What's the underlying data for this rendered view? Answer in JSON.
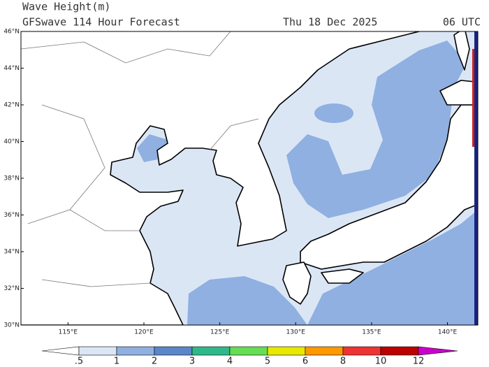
{
  "header": {
    "title": "Wave Height(m)",
    "subtitle": "GFSwave 114 Hour Forecast",
    "date": "Thu 18 Dec 2025",
    "time": "06 UTC"
  },
  "map": {
    "xlim": [
      111.9,
      142
    ],
    "ylim": [
      30,
      46
    ],
    "xticks": [
      {
        "value": 115,
        "label": "115°E"
      },
      {
        "value": 120,
        "label": "120°E"
      },
      {
        "value": 125,
        "label": "125°E"
      },
      {
        "value": 130,
        "label": "130°E"
      },
      {
        "value": 135,
        "label": "135°E"
      },
      {
        "value": 140,
        "label": "140°E"
      }
    ],
    "yticks": [
      {
        "value": 30,
        "label": "30°N"
      },
      {
        "value": 32,
        "label": "32°N"
      },
      {
        "value": 34,
        "label": "34°N"
      },
      {
        "value": 36,
        "label": "36°N"
      },
      {
        "value": 38,
        "label": "38°N"
      },
      {
        "value": 40,
        "label": "40°N"
      },
      {
        "value": 42,
        "label": "42°N"
      },
      {
        "value": 44,
        "label": "44°N"
      },
      {
        "value": 46,
        "label": "46°N"
      }
    ]
  },
  "colorbar": {
    "levels": [
      {
        "value": 0.5,
        "label": ".5"
      },
      1,
      2,
      3,
      4,
      5,
      6,
      8,
      10,
      12
    ],
    "colors": [
      "#ffffff",
      "#dbe6f5",
      "#8fb0e0",
      "#5b87c8",
      "#2fb88a",
      "#66dd55",
      "#e8e800",
      "#ff9900",
      "#ee3333",
      "#bb0000",
      "#cc00cc"
    ]
  }
}
